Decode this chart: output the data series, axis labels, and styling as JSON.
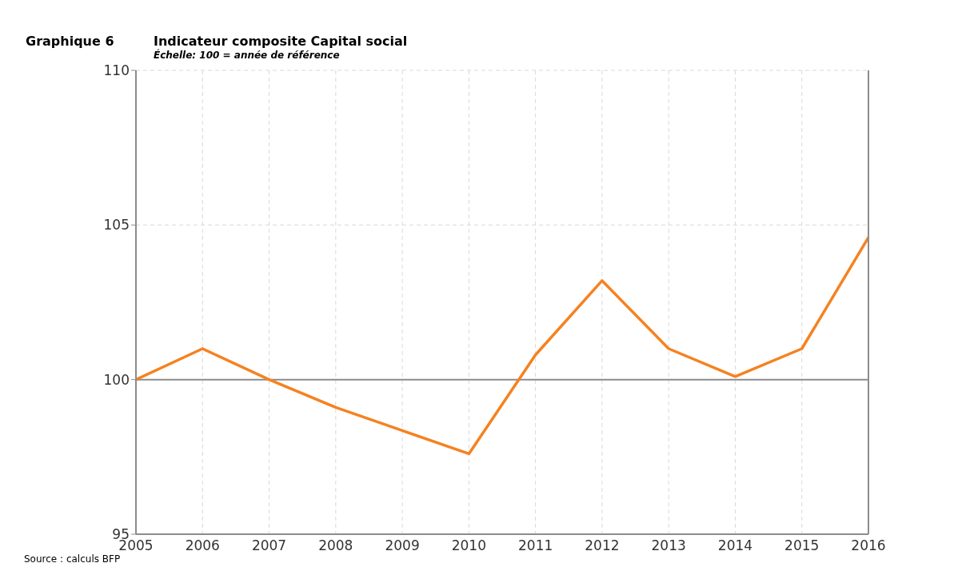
{
  "chart_data": {
    "type": "line",
    "title": "Indicateur composite Capital social",
    "subtitle": "Échelle: 100 = année de référence",
    "annotations": [
      "Graphique 6",
      "Source : calculs BFP"
    ],
    "x": [
      2005,
      2006,
      2007,
      2008,
      2009,
      2010,
      2011,
      2012,
      2013,
      2014,
      2015,
      2016
    ],
    "series": [
      {
        "color": "#f58220",
        "values": [
          100,
          101,
          100,
          99.1,
          98.35,
          97.6,
          100.8,
          103.2,
          101,
          100.1,
          101,
          104.6
        ]
      }
    ],
    "xlim": [
      2005,
      2016
    ],
    "xticks": [
      2005,
      2006,
      2007,
      2008,
      2009,
      2010,
      2011,
      2012,
      2013,
      2014,
      2015,
      2016
    ],
    "ylim": [
      95,
      110
    ],
    "yticks": [
      95,
      100,
      105,
      110
    ],
    "grid": true,
    "marker": "none",
    "line_style": "solid",
    "ref_lines": [
      {
        "axis": "y",
        "value": 100,
        "color": "#8c8c8c"
      }
    ]
  }
}
